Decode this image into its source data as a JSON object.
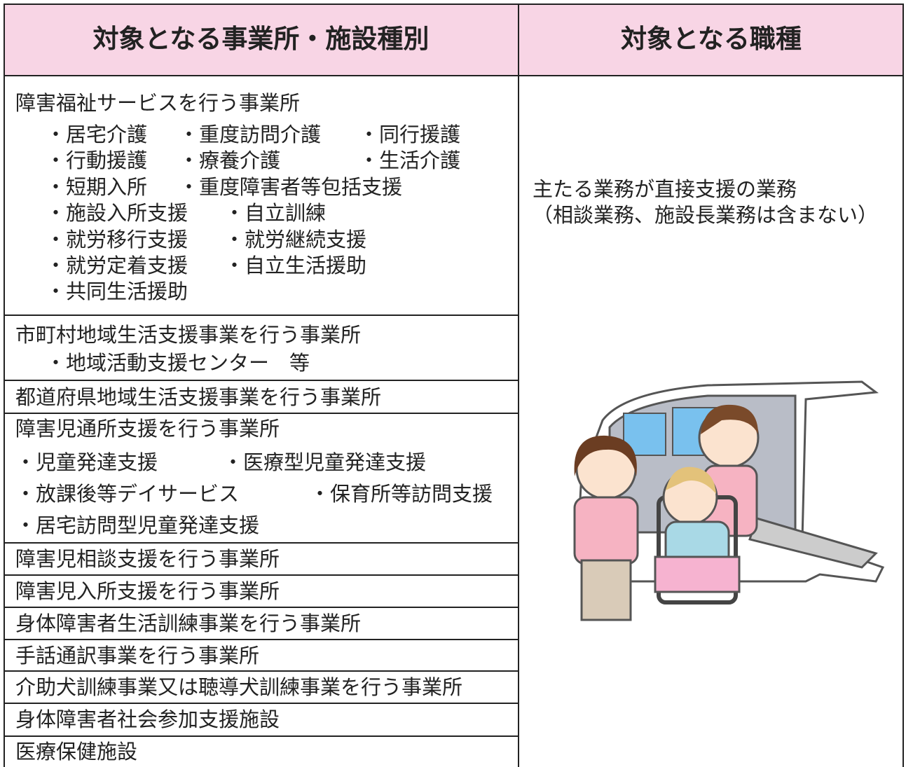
{
  "table": {
    "headers": [
      "対象となる事業所・施設種別",
      "対象となる職種"
    ],
    "rows": [
      {
        "title": "障害福祉サービスを行う事業所",
        "items": [
          [
            "・居宅介護",
            "・重度訪問介護",
            "・同行援護"
          ],
          [
            "・行動援護",
            "・療養介護",
            "・生活介護"
          ],
          [
            "・短期入所",
            "・重度障害者等包括支援"
          ],
          [
            "・施設入所支援",
            "・自立訓練"
          ],
          [
            "・就労移行支援",
            "・就労継続支援"
          ],
          [
            "・就労定着支援",
            "・自立生活援助"
          ],
          [
            "・共同生活援助"
          ]
        ]
      },
      {
        "title": "市町村地域生活支援事業を行う事業所",
        "items": [
          [
            "・地域活動支援センター　等"
          ]
        ]
      },
      {
        "title": "都道府県地域生活支援事業を行う事業所",
        "items": []
      },
      {
        "title": "障害児通所支援を行う事業所",
        "items": [
          [
            "・児童発達支援",
            "・医療型児童発達支援"
          ],
          [
            "・放課後等デイサービス",
            "・保育所等訪問支援"
          ],
          [
            "・居宅訪問型児童発達支援"
          ]
        ]
      },
      {
        "title": "障害児相談支援を行う事業所",
        "items": []
      },
      {
        "title": "障害児入所支援を行う事業所",
        "items": []
      },
      {
        "title": "身体障害者生活訓練事業を行う事業所",
        "items": []
      },
      {
        "title": "手話通訳事業を行う事業所",
        "items": []
      },
      {
        "title": "介助犬訓練事業又は聴導犬訓練事業を行う事業所",
        "items": []
      },
      {
        "title": "身体障害者社会参加支援施設",
        "items": []
      },
      {
        "title": "医療保健施設",
        "items": []
      }
    ],
    "job": {
      "lines": [
        "主たる業務が直接支援の業務",
        "（相談業務、施設長業務は含まない）"
      ]
    }
  }
}
